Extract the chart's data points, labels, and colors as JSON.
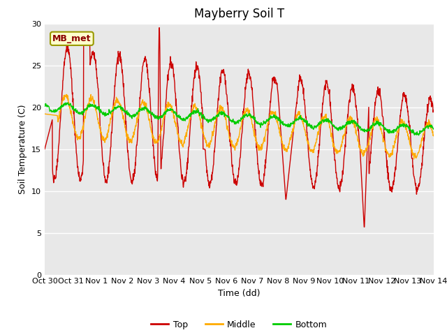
{
  "title": "Mayberry Soil T",
  "xlabel": "Time (dd)",
  "ylabel": "Soil Temperature (C)",
  "ylim": [
    0,
    30
  ],
  "xlim": [
    0,
    15
  ],
  "xtick_labels": [
    "Oct 30",
    "Oct 31",
    "Nov 1",
    "Nov 2",
    "Nov 3",
    "Nov 4",
    "Nov 5",
    "Nov 6",
    "Nov 7",
    "Nov 8",
    "Nov 9",
    "Nov 10",
    "Nov 11",
    "Nov 12",
    "Nov 13",
    "Nov 14"
  ],
  "xtick_positions": [
    0,
    1,
    2,
    3,
    4,
    5,
    6,
    7,
    8,
    9,
    10,
    11,
    12,
    13,
    14,
    15
  ],
  "ytick_positions": [
    0,
    5,
    10,
    15,
    20,
    25,
    30
  ],
  "fig_bg_color": "#ffffff",
  "plot_bg_color": "#e8e8e8",
  "grid_color": "#ffffff",
  "top_color": "#cc0000",
  "middle_color": "#ffaa00",
  "bottom_color": "#00cc00",
  "legend_label_top": "Top",
  "legend_label_middle": "Middle",
  "legend_label_bottom": "Bottom",
  "annotation_text": "MB_met",
  "title_fontsize": 12,
  "axis_label_fontsize": 9,
  "tick_fontsize": 8,
  "linewidth": 1.0
}
